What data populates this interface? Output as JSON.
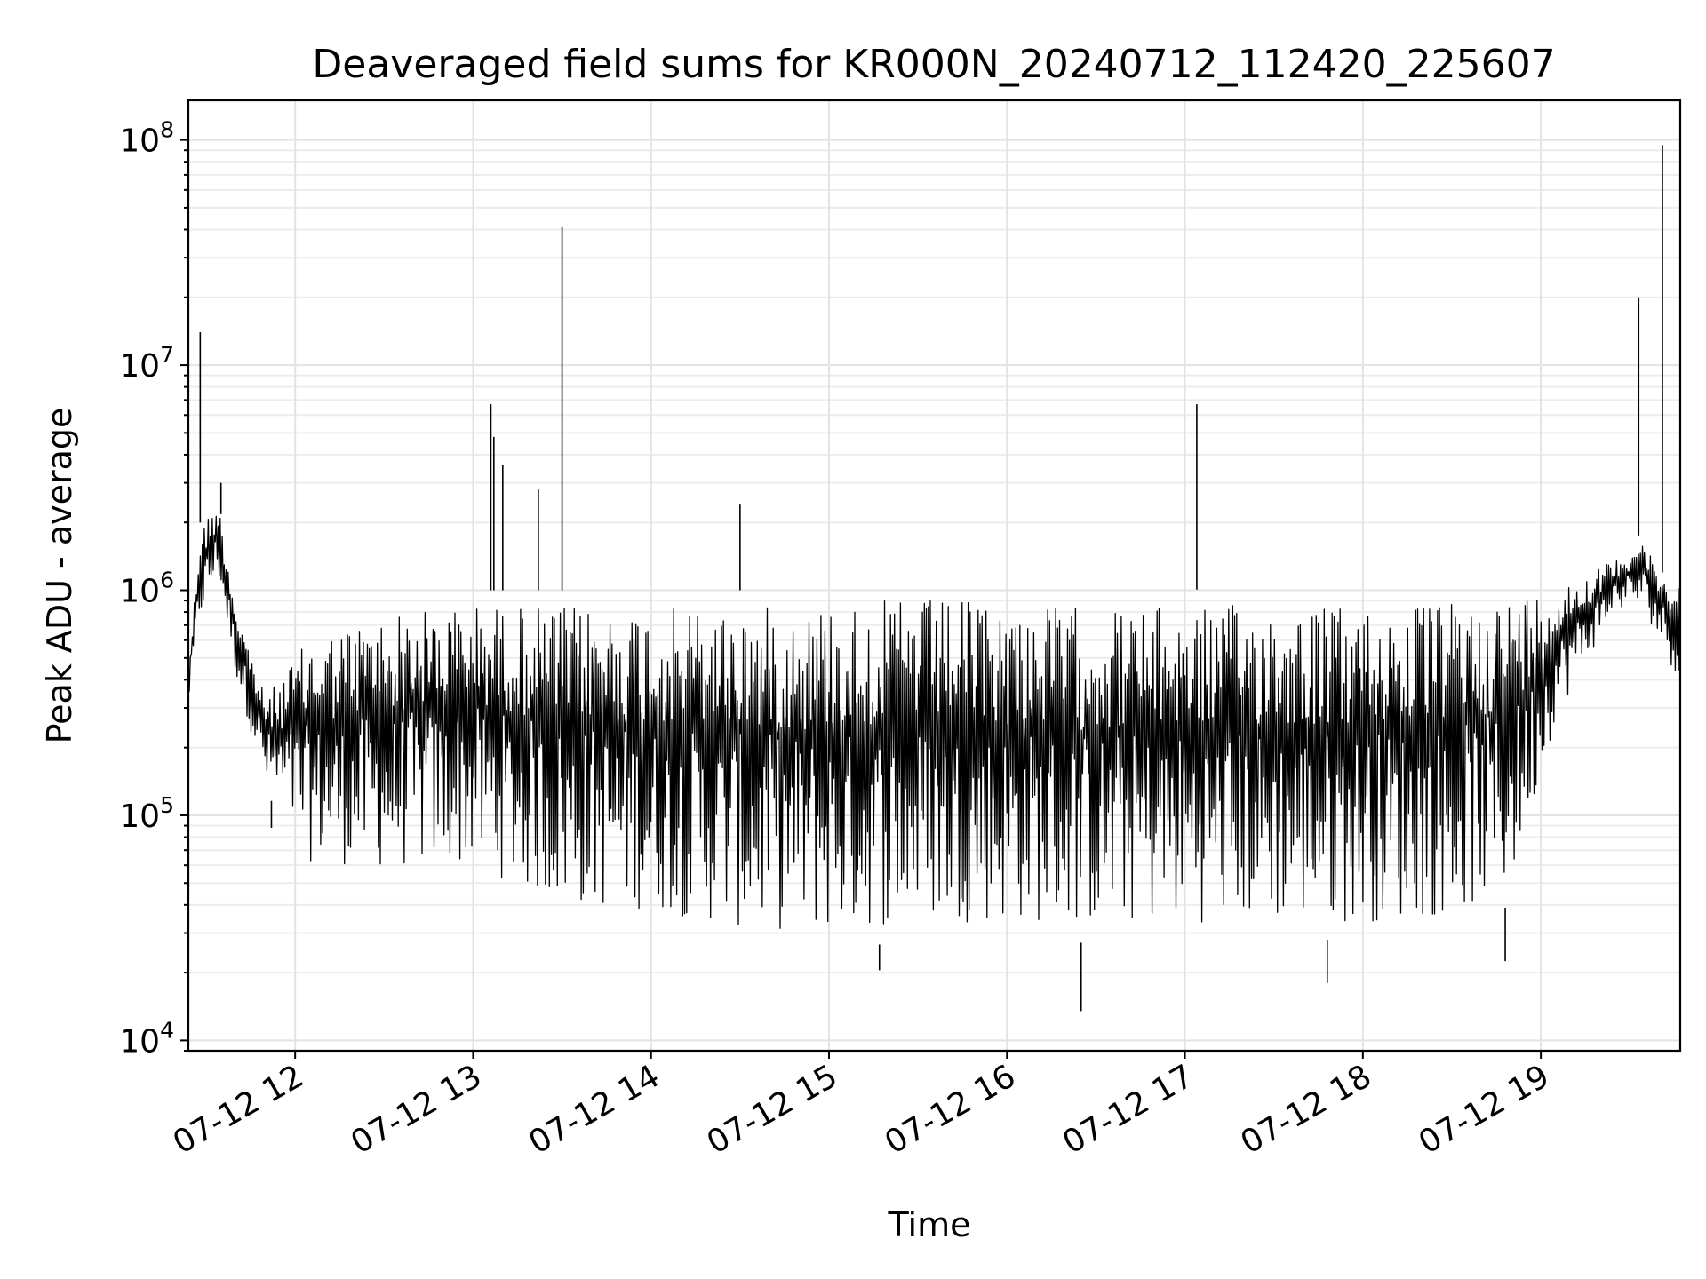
{
  "chart_data": {
    "type": "line",
    "title": "Deaveraged field sums for KR000N_20240712_112420_225607",
    "xlabel": "Time",
    "ylabel": "Peak ADU - average",
    "yscale": "log",
    "ylim": [
      9000,
      150000000
    ],
    "xlim": [
      "2024-07-12 11:24",
      "2024-07-12 19:47"
    ],
    "grid": true,
    "line_color": "#000000",
    "x_ticks": [
      {
        "value": "2024-07-12 12:00",
        "label": "07-12 12"
      },
      {
        "value": "2024-07-12 13:00",
        "label": "07-12 13"
      },
      {
        "value": "2024-07-12 14:00",
        "label": "07-12 14"
      },
      {
        "value": "2024-07-12 15:00",
        "label": "07-12 15"
      },
      {
        "value": "2024-07-12 16:00",
        "label": "07-12 16"
      },
      {
        "value": "2024-07-12 17:00",
        "label": "07-12 17"
      },
      {
        "value": "2024-07-12 18:00",
        "label": "07-12 18"
      },
      {
        "value": "2024-07-12 19:00",
        "label": "07-12 19"
      }
    ],
    "y_ticks": [
      {
        "value": 10000,
        "base": "10",
        "exp": "4"
      },
      {
        "value": 100000,
        "base": "10",
        "exp": "5"
      },
      {
        "value": 1000000,
        "base": "10",
        "exp": "6"
      },
      {
        "value": 10000000,
        "base": "10",
        "exp": "7"
      },
      {
        "value": 100000000,
        "base": "10",
        "exp": "8"
      }
    ],
    "envelope": [
      {
        "t": "2024-07-12 11:24",
        "low": 300000,
        "high": 450000
      },
      {
        "t": "2024-07-12 11:28",
        "low": 700000,
        "high": 2000000
      },
      {
        "t": "2024-07-12 11:34",
        "low": 1100000,
        "high": 2600000
      },
      {
        "t": "2024-07-12 11:40",
        "low": 400000,
        "high": 900000
      },
      {
        "t": "2024-07-12 11:50",
        "low": 130000,
        "high": 350000
      },
      {
        "t": "2024-07-12 12:05",
        "low": 55000,
        "high": 700000
      },
      {
        "t": "2024-07-12 12:30",
        "low": 50000,
        "high": 900000
      },
      {
        "t": "2024-07-12 13:00",
        "low": 52000,
        "high": 1000000
      },
      {
        "t": "2024-07-12 13:30",
        "low": 33000,
        "high": 1000000
      },
      {
        "t": "2024-07-12 14:00",
        "low": 32000,
        "high": 1000000
      },
      {
        "t": "2024-07-12 14:30",
        "low": 26000,
        "high": 1000000
      },
      {
        "t": "2024-07-12 15:00",
        "low": 25000,
        "high": 1050000
      },
      {
        "t": "2024-07-12 15:30",
        "low": 28000,
        "high": 1100000
      },
      {
        "t": "2024-07-12 16:00",
        "low": 28000,
        "high": 1050000
      },
      {
        "t": "2024-07-12 16:30",
        "low": 27000,
        "high": 1000000
      },
      {
        "t": "2024-07-12 17:00",
        "low": 28000,
        "high": 1000000
      },
      {
        "t": "2024-07-12 17:30",
        "low": 28000,
        "high": 1050000
      },
      {
        "t": "2024-07-12 18:00",
        "low": 28000,
        "high": 1000000
      },
      {
        "t": "2024-07-12 18:30",
        "low": 30000,
        "high": 1050000
      },
      {
        "t": "2024-07-12 18:50",
        "low": 40000,
        "high": 1100000
      },
      {
        "t": "2024-07-12 19:05",
        "low": 250000,
        "high": 1100000
      },
      {
        "t": "2024-07-12 19:25",
        "low": 800000,
        "high": 1400000
      },
      {
        "t": "2024-07-12 19:34",
        "low": 800000,
        "high": 1800000
      },
      {
        "t": "2024-07-12 19:40",
        "low": 600000,
        "high": 1200000
      },
      {
        "t": "2024-07-12 19:47",
        "low": 350000,
        "high": 1200000
      }
    ],
    "spikes": [
      {
        "t": "2024-07-12 11:28",
        "value": 14000000
      },
      {
        "t": "2024-07-12 11:35",
        "value": 3000000
      },
      {
        "t": "2024-07-12 13:06",
        "value": 6700000
      },
      {
        "t": "2024-07-12 13:07",
        "value": 4800000
      },
      {
        "t": "2024-07-12 13:10",
        "value": 3600000
      },
      {
        "t": "2024-07-12 13:22",
        "value": 2800000
      },
      {
        "t": "2024-07-12 13:30",
        "value": 41000000
      },
      {
        "t": "2024-07-12 14:30",
        "value": 2400000
      },
      {
        "t": "2024-07-12 17:04",
        "value": 6700000
      },
      {
        "t": "2024-07-12 19:33",
        "value": 20000000
      },
      {
        "t": "2024-07-12 19:41",
        "value": 95000000
      }
    ],
    "dips": [
      {
        "t": "2024-07-12 16:25",
        "value": 13500
      },
      {
        "t": "2024-07-12 17:48",
        "value": 18000
      },
      {
        "t": "2024-07-12 18:48",
        "value": 22500
      },
      {
        "t": "2024-07-12 15:17",
        "value": 20500
      },
      {
        "t": "2024-07-12 11:52",
        "value": 88000
      }
    ]
  }
}
